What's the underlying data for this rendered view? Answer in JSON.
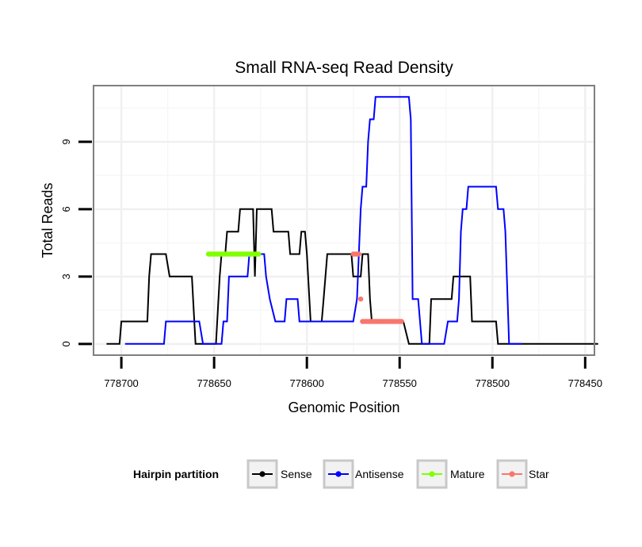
{
  "chart_data": {
    "type": "line",
    "title": "Small RNA-seq Read Density",
    "xlabel": "Genomic Position",
    "ylabel": "Total Reads",
    "xlim": [
      778715,
      778445
    ],
    "ylim": [
      -0.5,
      11.5
    ],
    "x_reversed": true,
    "grid": true,
    "x_ticks": [
      778700,
      778650,
      778600,
      778550,
      778500,
      778450
    ],
    "x_tick_labels": [
      "778700",
      "778650",
      "778600",
      "778550",
      "778500",
      "778450"
    ],
    "y_ticks": [
      0,
      3,
      6,
      9
    ],
    "y_tick_labels": [
      "0",
      "3",
      "6",
      "9"
    ],
    "legend_position": "bottom",
    "legend_title": "Hairpin partition",
    "series": [
      {
        "name": "Sense",
        "color": "#000000",
        "kind": "line",
        "points": [
          [
            778708,
            0
          ],
          [
            778701,
            0
          ],
          [
            778700,
            1
          ],
          [
            778686,
            1
          ],
          [
            778685,
            3
          ],
          [
            778684,
            4
          ],
          [
            778676,
            4
          ],
          [
            778674,
            3
          ],
          [
            778662,
            3
          ],
          [
            778660,
            0
          ],
          [
            778649,
            0
          ],
          [
            778647,
            3
          ],
          [
            778646,
            4
          ],
          [
            778644,
            4
          ],
          [
            778643,
            5
          ],
          [
            778637,
            5
          ],
          [
            778636,
            6
          ],
          [
            778629,
            6
          ],
          [
            778628,
            3
          ],
          [
            778627,
            6
          ],
          [
            778619,
            6
          ],
          [
            778618,
            5
          ],
          [
            778610,
            5
          ],
          [
            778609,
            4
          ],
          [
            778604,
            4
          ],
          [
            778603,
            5
          ],
          [
            778601,
            5
          ],
          [
            778600,
            4
          ],
          [
            778598,
            1
          ],
          [
            778592,
            1
          ],
          [
            778591,
            2
          ],
          [
            778590,
            3
          ],
          [
            778589,
            4
          ],
          [
            778576,
            4
          ],
          [
            778575,
            3
          ],
          [
            778571,
            3
          ],
          [
            778570,
            4
          ],
          [
            778567,
            4
          ],
          [
            778566,
            2
          ],
          [
            778565,
            1
          ],
          [
            778553,
            1
          ],
          [
            778552,
            1
          ],
          [
            778548,
            1
          ],
          [
            778545,
            0
          ],
          [
            778534,
            0
          ],
          [
            778533,
            2
          ],
          [
            778522,
            2
          ],
          [
            778521,
            3
          ],
          [
            778512,
            3
          ],
          [
            778511,
            1
          ],
          [
            778498,
            1
          ],
          [
            778497,
            0
          ],
          [
            778443,
            0
          ]
        ]
      },
      {
        "name": "Antisense",
        "color": "#0000ff",
        "kind": "line",
        "points": [
          [
            778698,
            0
          ],
          [
            778677,
            0
          ],
          [
            778676,
            1
          ],
          [
            778658,
            1
          ],
          [
            778656,
            0
          ],
          [
            778646,
            0
          ],
          [
            778645,
            1
          ],
          [
            778643,
            1
          ],
          [
            778642,
            3
          ],
          [
            778632,
            3
          ],
          [
            778631,
            4
          ],
          [
            778623,
            4
          ],
          [
            778622,
            3
          ],
          [
            778620,
            2
          ],
          [
            778617,
            1
          ],
          [
            778612,
            1
          ],
          [
            778611,
            2
          ],
          [
            778605,
            2
          ],
          [
            778604,
            1
          ],
          [
            778599,
            1
          ],
          [
            778598,
            1
          ],
          [
            778575,
            1
          ],
          [
            778573,
            2
          ],
          [
            778571,
            6
          ],
          [
            778570,
            7
          ],
          [
            778568,
            7
          ],
          [
            778567,
            9
          ],
          [
            778566,
            10
          ],
          [
            778564,
            10
          ],
          [
            778563,
            11
          ],
          [
            778545,
            11
          ],
          [
            778544,
            10
          ],
          [
            778543,
            2
          ],
          [
            778540,
            2
          ],
          [
            778538,
            0
          ],
          [
            778526,
            0
          ],
          [
            778524,
            1
          ],
          [
            778519,
            1
          ],
          [
            778518,
            2
          ],
          [
            778517,
            5
          ],
          [
            778516,
            6
          ],
          [
            778514,
            6
          ],
          [
            778513,
            7
          ],
          [
            778498,
            7
          ],
          [
            778497,
            6
          ],
          [
            778494,
            6
          ],
          [
            778493,
            5
          ],
          [
            778491,
            0
          ],
          [
            778484,
            0
          ]
        ]
      },
      {
        "name": "Mature",
        "color": "#80ff00",
        "kind": "dots",
        "points": [
          [
            778653,
            4
          ],
          [
            778652,
            4
          ],
          [
            778651,
            4
          ],
          [
            778650,
            4
          ],
          [
            778649,
            4
          ],
          [
            778648,
            4
          ],
          [
            778647,
            4
          ],
          [
            778646,
            4
          ],
          [
            778645,
            4
          ],
          [
            778644,
            4
          ],
          [
            778643,
            4
          ],
          [
            778642,
            4
          ],
          [
            778641,
            4
          ],
          [
            778640,
            4
          ],
          [
            778639,
            4
          ],
          [
            778638,
            4
          ],
          [
            778637,
            4
          ],
          [
            778636,
            4
          ],
          [
            778635,
            4
          ],
          [
            778634,
            4
          ],
          [
            778633,
            4
          ],
          [
            778632,
            4
          ],
          [
            778631,
            4
          ],
          [
            778630,
            4
          ],
          [
            778629,
            4
          ],
          [
            778628,
            4
          ],
          [
            778627,
            4
          ],
          [
            778626,
            4
          ]
        ]
      },
      {
        "name": "Star",
        "color": "#f8766d",
        "kind": "dots",
        "points": [
          [
            778575,
            4
          ],
          [
            778574,
            4
          ],
          [
            778573,
            4
          ],
          [
            778572,
            4
          ],
          [
            778571,
            2
          ],
          [
            778570,
            1
          ],
          [
            778569,
            1
          ],
          [
            778568,
            1
          ],
          [
            778567,
            1
          ],
          [
            778566,
            1
          ],
          [
            778565,
            1
          ],
          [
            778564,
            1
          ],
          [
            778563,
            1
          ],
          [
            778562,
            1
          ],
          [
            778561,
            1
          ],
          [
            778560,
            1
          ],
          [
            778559,
            1
          ],
          [
            778558,
            1
          ],
          [
            778557,
            1
          ],
          [
            778556,
            1
          ],
          [
            778555,
            1
          ],
          [
            778554,
            1
          ],
          [
            778553,
            1
          ],
          [
            778552,
            1
          ],
          [
            778551,
            1
          ],
          [
            778550,
            1
          ],
          [
            778549,
            1
          ]
        ]
      }
    ]
  }
}
